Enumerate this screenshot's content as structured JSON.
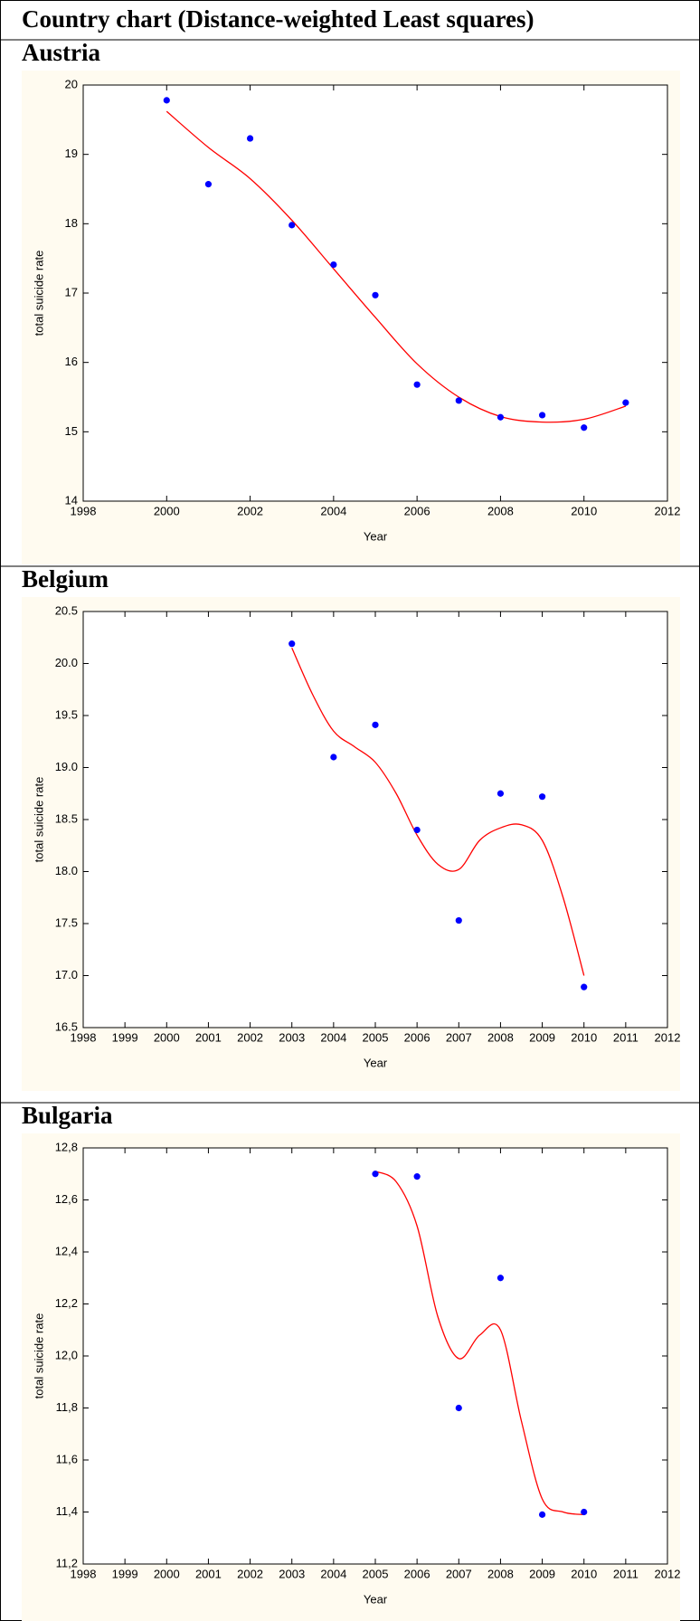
{
  "title": "Country chart (Distance-weighted Least squares)",
  "chart_data": [
    {
      "type": "scatter",
      "title": "Austria",
      "xlabel": "Year",
      "ylabel": "total suicide rate",
      "x": [
        2000,
        2001,
        2002,
        2003,
        2004,
        2005,
        2006,
        2007,
        2008,
        2009,
        2010,
        2011
      ],
      "values": [
        19.78,
        18.57,
        19.23,
        17.98,
        17.41,
        16.97,
        15.68,
        15.45,
        15.21,
        15.24,
        15.06,
        15.42
      ],
      "color": "#0000ff",
      "fit": {
        "x": [
          2000,
          2001,
          2002,
          2003,
          2004,
          2005,
          2006,
          2007,
          2008,
          2009,
          2010,
          2011
        ],
        "values": [
          19.62,
          19.1,
          18.65,
          18.05,
          17.35,
          16.65,
          15.98,
          15.5,
          15.22,
          15.14,
          15.18,
          15.37
        ],
        "color": "#ff0000"
      },
      "xlim": [
        1998,
        2012
      ],
      "xticks": [
        1998,
        2000,
        2002,
        2004,
        2006,
        2008,
        2010,
        2012
      ],
      "ylim": [
        14,
        20
      ],
      "yticks": [
        14,
        15,
        16,
        17,
        18,
        19,
        20
      ]
    },
    {
      "type": "scatter",
      "title": "Belgium",
      "xlabel": "Year",
      "ylabel": "total suicide rate",
      "x": [
        2003,
        2004,
        2005,
        2006,
        2007,
        2008,
        2009,
        2010
      ],
      "values": [
        20.19,
        19.1,
        19.41,
        18.4,
        17.53,
        18.75,
        18.72,
        16.89
      ],
      "color": "#0000ff",
      "fit": {
        "x": [
          2003,
          2003.5,
          2004,
          2004.5,
          2005,
          2005.5,
          2006,
          2006.5,
          2007,
          2007.5,
          2008,
          2008.5,
          2009,
          2009.5,
          2010
        ],
        "values": [
          20.15,
          19.7,
          19.35,
          19.2,
          19.05,
          18.75,
          18.35,
          18.07,
          18.02,
          18.3,
          18.42,
          18.45,
          18.3,
          17.75,
          17.0
        ],
        "color": "#ff0000"
      },
      "xlim": [
        1998,
        2012
      ],
      "xticks": [
        1998,
        1999,
        2000,
        2001,
        2002,
        2003,
        2004,
        2005,
        2006,
        2007,
        2008,
        2009,
        2010,
        2011,
        2012
      ],
      "ylim": [
        16.5,
        20.5
      ],
      "yticks": [
        16.5,
        {
          "value": 17,
          "label": "17.0"
        },
        17.5,
        {
          "value": 18,
          "label": "18.0"
        },
        18.5,
        {
          "value": 19,
          "label": "19.0"
        },
        19.5,
        {
          "value": 20,
          "label": "20.0"
        },
        20.5
      ]
    },
    {
      "type": "scatter",
      "title": "Bulgaria",
      "xlabel": "Year",
      "ylabel": "total suicide rate",
      "x": [
        2005,
        2006,
        2007,
        2008,
        2009,
        2010
      ],
      "values": [
        12.7,
        12.69,
        11.8,
        12.3,
        11.39,
        11.4
      ],
      "color": "#0000ff",
      "fit": {
        "x": [
          2005,
          2005.5,
          2006,
          2006.5,
          2007,
          2007.5,
          2008,
          2008.5,
          2009,
          2009.5,
          2010
        ],
        "values": [
          12.71,
          12.67,
          12.5,
          12.15,
          11.99,
          12.08,
          12.1,
          11.75,
          11.45,
          11.4,
          11.39
        ],
        "color": "#ff0000"
      },
      "xlim": [
        1998,
        2012
      ],
      "xticks": [
        1998,
        1999,
        2000,
        2001,
        2002,
        2003,
        2004,
        2005,
        2006,
        2007,
        2008,
        2009,
        2010,
        2011,
        2012
      ],
      "ylim": [
        11.2,
        12.8
      ],
      "yticks": [
        {
          "value": 11.2,
          "label": "11,2"
        },
        {
          "value": 11.4,
          "label": "11,4"
        },
        {
          "value": 11.6,
          "label": "11,6"
        },
        {
          "value": 11.8,
          "label": "11,8"
        },
        {
          "value": 12.0,
          "label": "12,0"
        },
        {
          "value": 12.2,
          "label": "12,2"
        },
        {
          "value": 12.4,
          "label": "12,4"
        },
        {
          "value": 12.6,
          "label": "12,6"
        },
        {
          "value": 12.8,
          "label": "12,8"
        }
      ]
    }
  ]
}
